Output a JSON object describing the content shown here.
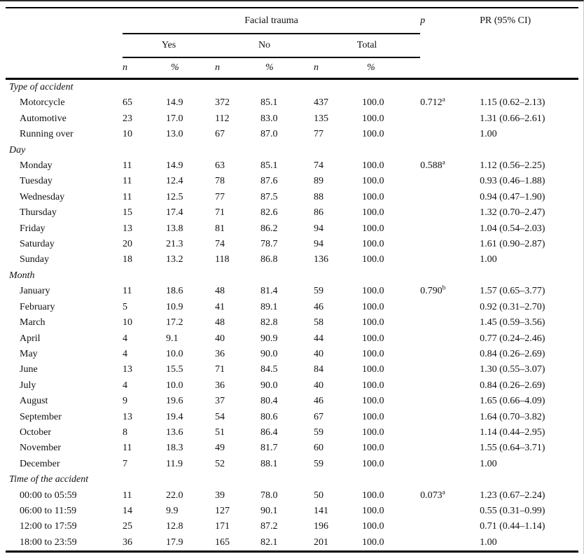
{
  "table": {
    "group_title": "Facial trauma",
    "p_label": "p",
    "pr_label": "PR (95% CI)",
    "subgroups": [
      "Yes",
      "No",
      "Total"
    ],
    "n_label": "n",
    "pct_label": "%"
  },
  "sections": [
    {
      "label": "Type of accident",
      "rows": [
        {
          "label": "Motorcycle",
          "yes_n": "65",
          "yes_pct": "14.9",
          "no_n": "372",
          "no_pct": "85.1",
          "total_n": "437",
          "total_pct": "100.0",
          "p": "0.712",
          "p_sup": "a",
          "pr": "1.15 (0.62–2.13)"
        },
        {
          "label": "Automotive",
          "yes_n": "23",
          "yes_pct": "17.0",
          "no_n": "112",
          "no_pct": "83.0",
          "total_n": "135",
          "total_pct": "100.0",
          "pr": "1.31 (0.66–2.61)"
        },
        {
          "label": "Running over",
          "yes_n": "10",
          "yes_pct": "13.0",
          "no_n": "67",
          "no_pct": "87.0",
          "total_n": "77",
          "total_pct": "100.0",
          "pr": "1.00"
        }
      ]
    },
    {
      "label": "Day",
      "rows": [
        {
          "label": "Monday",
          "yes_n": "11",
          "yes_pct": "14.9",
          "no_n": "63",
          "no_pct": "85.1",
          "total_n": "74",
          "total_pct": "100.0",
          "p": "0.588",
          "p_sup": "a",
          "pr": "1.12 (0.56–2.25)"
        },
        {
          "label": "Tuesday",
          "yes_n": "11",
          "yes_pct": "12.4",
          "no_n": "78",
          "no_pct": "87.6",
          "total_n": "89",
          "total_pct": "100.0",
          "pr": "0.93 (0.46–1.88)"
        },
        {
          "label": "Wednesday",
          "yes_n": "11",
          "yes_pct": "12.5",
          "no_n": "77",
          "no_pct": "87.5",
          "total_n": "88",
          "total_pct": "100.0",
          "pr": "0.94 (0.47–1.90)"
        },
        {
          "label": "Thursday",
          "yes_n": "15",
          "yes_pct": "17.4",
          "no_n": "71",
          "no_pct": "82.6",
          "total_n": "86",
          "total_pct": "100.0",
          "pr": "1.32 (0.70–2.47)"
        },
        {
          "label": "Friday",
          "yes_n": "13",
          "yes_pct": "13.8",
          "no_n": "81",
          "no_pct": "86.2",
          "total_n": "94",
          "total_pct": "100.0",
          "pr": "1.04 (0.54–2.03)"
        },
        {
          "label": "Saturday",
          "yes_n": "20",
          "yes_pct": "21.3",
          "no_n": "74",
          "no_pct": "78.7",
          "total_n": "94",
          "total_pct": "100.0",
          "pr": "1.61 (0.90–2.87)"
        },
        {
          "label": "Sunday",
          "yes_n": "18",
          "yes_pct": "13.2",
          "no_n": "118",
          "no_pct": "86.8",
          "total_n": "136",
          "total_pct": "100.0",
          "pr": "1.00"
        }
      ]
    },
    {
      "label": "Month",
      "rows": [
        {
          "label": "January",
          "yes_n": "11",
          "yes_pct": "18.6",
          "no_n": "48",
          "no_pct": "81.4",
          "total_n": "59",
          "total_pct": "100.0",
          "p": "0.790",
          "p_sup": "b",
          "pr": "1.57 (0.65–3.77)"
        },
        {
          "label": "February",
          "yes_n": "5",
          "yes_pct": "10.9",
          "no_n": "41",
          "no_pct": "89.1",
          "total_n": "46",
          "total_pct": "100.0",
          "pr": "0.92 (0.31–2.70)"
        },
        {
          "label": "March",
          "yes_n": "10",
          "yes_pct": "17.2",
          "no_n": "48",
          "no_pct": "82.8",
          "total_n": "58",
          "total_pct": "100.0",
          "pr": "1.45 (0.59–3.56)"
        },
        {
          "label": "April",
          "yes_n": "4",
          "yes_pct": "9.1",
          "no_n": "40",
          "no_pct": "90.9",
          "total_n": "44",
          "total_pct": "100.0",
          "pr": "0.77 (0.24–2.46)"
        },
        {
          "label": "May",
          "yes_n": "4",
          "yes_pct": "10.0",
          "no_n": "36",
          "no_pct": "90.0",
          "total_n": "40",
          "total_pct": "100.0",
          "pr": "0.84 (0.26–2.69)"
        },
        {
          "label": "June",
          "yes_n": "13",
          "yes_pct": "15.5",
          "no_n": "71",
          "no_pct": "84.5",
          "total_n": "84",
          "total_pct": "100.0",
          "pr": "1.30 (0.55–3.07)"
        },
        {
          "label": "July",
          "yes_n": "4",
          "yes_pct": "10.0",
          "no_n": "36",
          "no_pct": "90.0",
          "total_n": "40",
          "total_pct": "100.0",
          "pr": "0.84 (0.26–2.69)"
        },
        {
          "label": "August",
          "yes_n": "9",
          "yes_pct": "19.6",
          "no_n": "37",
          "no_pct": "80.4",
          "total_n": "46",
          "total_pct": "100.0",
          "pr": "1.65 (0.66–4.09)"
        },
        {
          "label": "September",
          "yes_n": "13",
          "yes_pct": "19.4",
          "no_n": "54",
          "no_pct": "80.6",
          "total_n": "67",
          "total_pct": "100.0",
          "pr": "1.64 (0.70–3.82)"
        },
        {
          "label": "October",
          "yes_n": "8",
          "yes_pct": "13.6",
          "no_n": "51",
          "no_pct": "86.4",
          "total_n": "59",
          "total_pct": "100.0",
          "pr": "1.14 (0.44–2.95)"
        },
        {
          "label": "November",
          "yes_n": "11",
          "yes_pct": "18.3",
          "no_n": "49",
          "no_pct": "81.7",
          "total_n": "60",
          "total_pct": "100.0",
          "pr": "1.55 (0.64–3.71)"
        },
        {
          "label": "December",
          "yes_n": "7",
          "yes_pct": "11.9",
          "no_n": "52",
          "no_pct": "88.1",
          "total_n": "59",
          "total_pct": "100.0",
          "pr": "1.00"
        }
      ]
    },
    {
      "label": "Time of the accident",
      "rows": [
        {
          "label": "00:00 to 05:59",
          "yes_n": "11",
          "yes_pct": "22.0",
          "no_n": "39",
          "no_pct": "78.0",
          "total_n": "50",
          "total_pct": "100.0",
          "p": "0.073",
          "p_sup": "a",
          "pr": "1.23 (0.67–2.24)"
        },
        {
          "label": "06:00 to 11:59",
          "yes_n": "14",
          "yes_pct": "9.9",
          "no_n": "127",
          "no_pct": "90.1",
          "total_n": "141",
          "total_pct": "100.0",
          "pr": "0.55 (0.31–0.99)"
        },
        {
          "label": "12:00 to 17:59",
          "yes_n": "25",
          "yes_pct": "12.8",
          "no_n": "171",
          "no_pct": "87.2",
          "total_n": "196",
          "total_pct": "100.0",
          "pr": "0.71 (0.44–1.14)"
        },
        {
          "label": "18:00 to 23:59",
          "yes_n": "36",
          "yes_pct": "17.9",
          "no_n": "165",
          "no_pct": "82.1",
          "total_n": "201",
          "total_pct": "100.0",
          "pr": "1.00"
        }
      ]
    }
  ]
}
